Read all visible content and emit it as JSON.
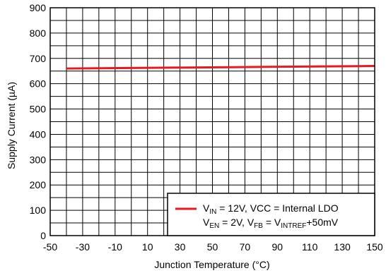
{
  "chart_data": {
    "type": "line",
    "title": "",
    "xlabel": "Junction Temperature (°C)",
    "ylabel": "Supply Current (µA)",
    "xlim": [
      -50,
      150
    ],
    "ylim": [
      0,
      900
    ],
    "x_ticks": [
      -50,
      -30,
      -10,
      10,
      30,
      50,
      70,
      90,
      110,
      130,
      150
    ],
    "y_ticks": [
      0,
      100,
      200,
      300,
      400,
      500,
      600,
      700,
      800,
      900
    ],
    "x_minor_step": 10,
    "y_minor_step": 50,
    "grid": true,
    "legend_position": "bottom-right",
    "series": [
      {
        "x": [
          -40,
          150
        ],
        "values": [
          660,
          670
        ],
        "color": "#e8191f"
      }
    ],
    "legend": {
      "line1": {
        "v": "V",
        "sub": "IN",
        "rest": " = 12V, VCC = Internal LDO"
      },
      "line2": {
        "v1": "V",
        "sub1": "EN",
        "mid": " = 2V, V",
        "sub2": "FB",
        "mid2": " = V",
        "sub3": "INTREF",
        "rest": "+50mV"
      }
    }
  }
}
